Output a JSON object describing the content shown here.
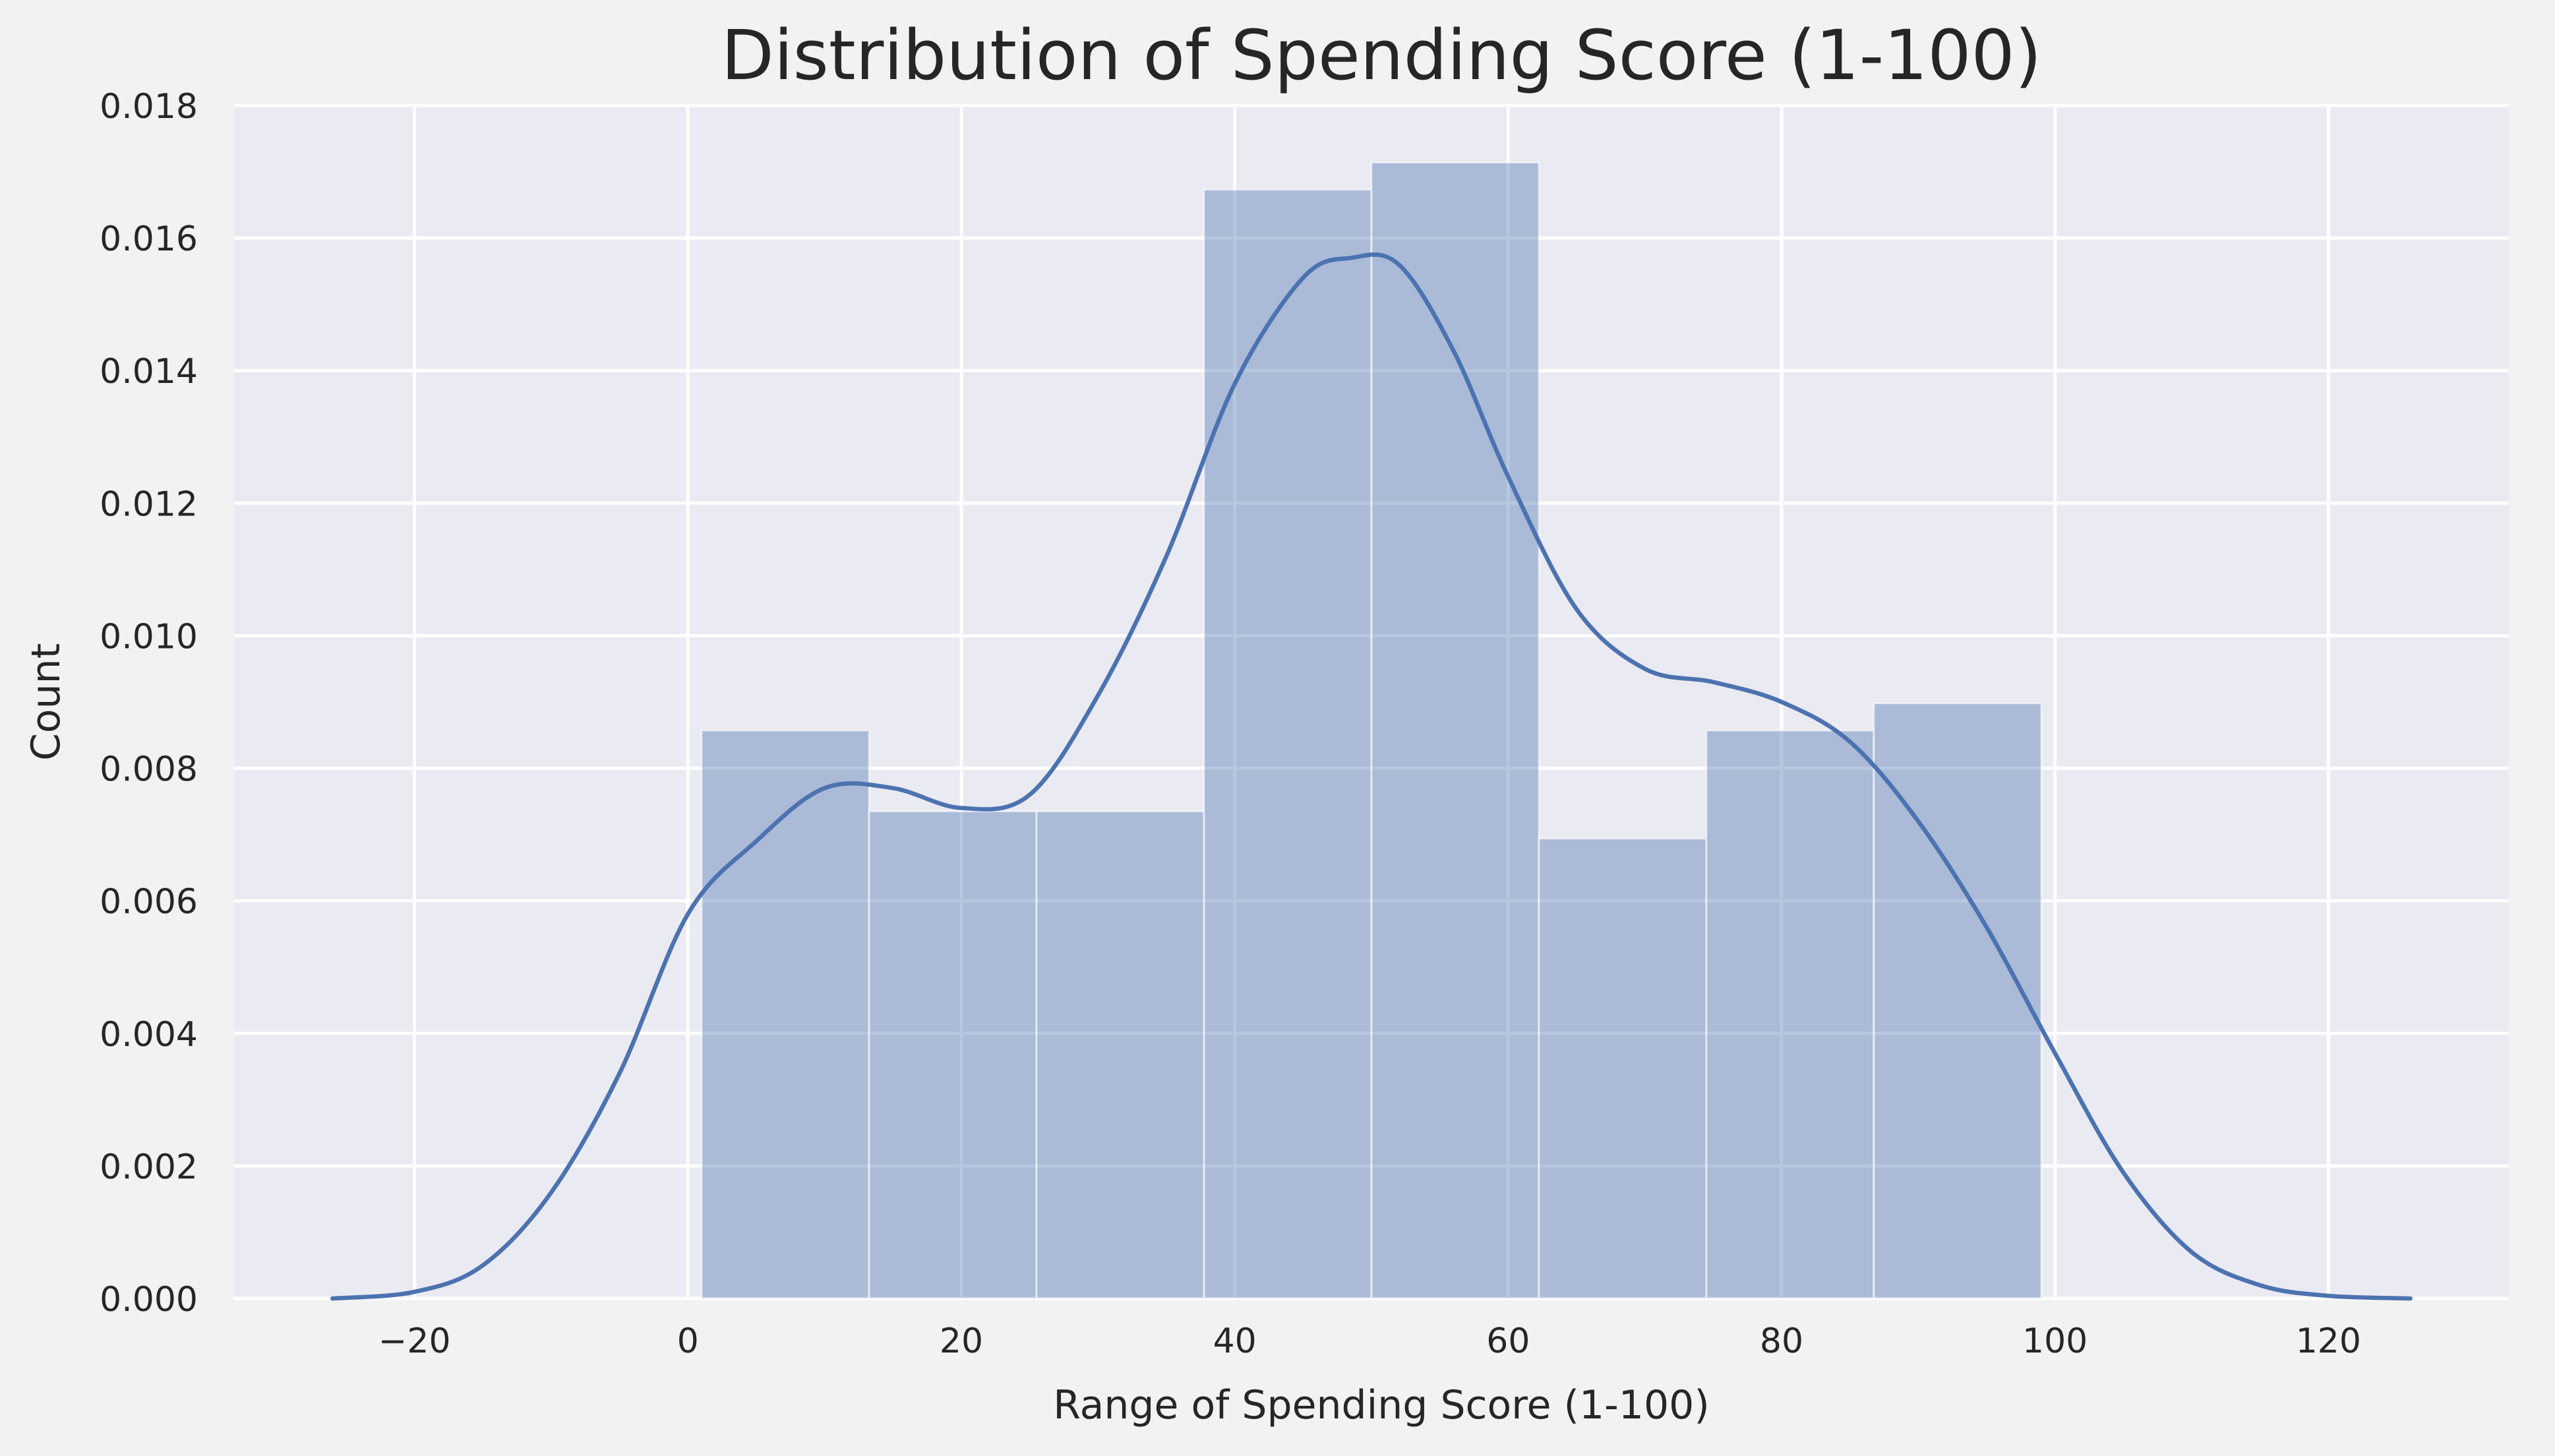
{
  "chart_data": {
    "type": "bar",
    "title": "Distribution of Spending Score (1-100)",
    "xlabel": "Range of Spending Score (1-100)",
    "ylabel": "Count",
    "xlim": [
      -33.2,
      133.2
    ],
    "ylim": [
      0,
      0.018
    ],
    "xticks": [
      -20,
      0,
      20,
      40,
      60,
      80,
      100,
      120
    ],
    "xtick_labels": [
      "−20",
      "0",
      "20",
      "40",
      "60",
      "80",
      "100",
      "120"
    ],
    "yticks": [
      0,
      0.002,
      0.004,
      0.006,
      0.008,
      0.01,
      0.012,
      0.014,
      0.016,
      0.018
    ],
    "ytick_labels": [
      "0.000",
      "0.002",
      "0.004",
      "0.006",
      "0.008",
      "0.010",
      "0.012",
      "0.014",
      "0.016",
      "0.018"
    ],
    "grid": true,
    "histogram": {
      "bin_edges": [
        1.0,
        13.25,
        25.5,
        37.75,
        50.0,
        62.25,
        74.5,
        86.75,
        99.0
      ],
      "values": [
        0.00857,
        0.00735,
        0.00735,
        0.01673,
        0.01714,
        0.00694,
        0.00857,
        0.00898
      ],
      "color": "#4c72b0"
    },
    "kde": {
      "color": "#4c72b0",
      "x": [
        -26,
        -20,
        -15,
        -10,
        -5,
        0,
        5,
        10,
        15,
        20,
        25,
        30,
        35,
        40,
        45,
        48.5,
        52,
        56,
        60,
        65,
        70,
        75,
        80,
        85,
        90,
        95,
        100,
        105,
        110,
        115,
        120,
        126
      ],
      "y": [
        0.0,
        0.0001,
        0.0005,
        0.0016,
        0.0034,
        0.0058,
        0.0069,
        0.0077,
        0.0077,
        0.0074,
        0.0076,
        0.0091,
        0.0112,
        0.0138,
        0.0154,
        0.0157,
        0.0156,
        0.0143,
        0.0124,
        0.0104,
        0.0095,
        0.0093,
        0.009,
        0.0084,
        0.0072,
        0.0056,
        0.0037,
        0.0019,
        0.0007,
        0.0002,
        4e-05,
        0.0
      ]
    }
  }
}
